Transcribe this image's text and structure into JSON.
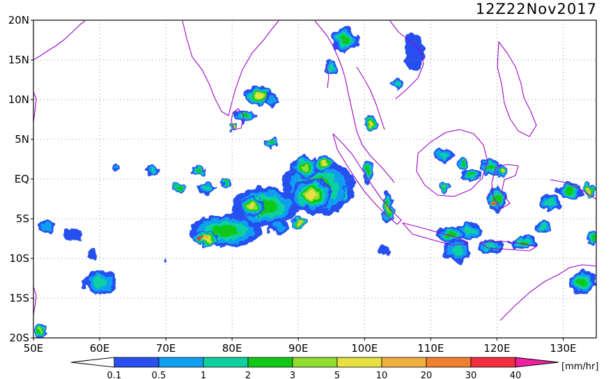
{
  "title": "12Z22Nov2017",
  "map": {
    "lon_range": [
      50,
      135
    ],
    "lat_range": [
      -20,
      20
    ],
    "lon_ticks": [
      {
        "value": 50,
        "label": "50E"
      },
      {
        "value": 60,
        "label": "60E"
      },
      {
        "value": 70,
        "label": "70E"
      },
      {
        "value": 80,
        "label": "80E"
      },
      {
        "value": 90,
        "label": "90E"
      },
      {
        "value": 100,
        "label": "100E"
      },
      {
        "value": 110,
        "label": "110E"
      },
      {
        "value": 120,
        "label": "120E"
      },
      {
        "value": 130,
        "label": "130E"
      }
    ],
    "lat_ticks": [
      {
        "value": 20,
        "label": "20N"
      },
      {
        "value": 15,
        "label": "15N"
      },
      {
        "value": 10,
        "label": "10N"
      },
      {
        "value": 5,
        "label": "5N"
      },
      {
        "value": 0,
        "label": "EQ"
      },
      {
        "value": -5,
        "label": "5S"
      },
      {
        "value": -10,
        "label": "10S"
      },
      {
        "value": -15,
        "label": "15S"
      },
      {
        "value": -20,
        "label": "20S"
      }
    ],
    "grid": "dotted",
    "coast_color": "#a000c8"
  },
  "colorbar": {
    "unit": "[mm/hr]",
    "levels": [
      "0.1",
      "0.5",
      "1",
      "2",
      "3",
      "5",
      "10",
      "20",
      "30",
      "40"
    ],
    "colors": [
      "#2850f0",
      "#10a0f0",
      "#10d0a0",
      "#10c818",
      "#90dc30",
      "#e8e040",
      "#f0b040",
      "#f08030",
      "#f03040"
    ],
    "under_color": "#ffffff",
    "over_color": "#f020a0"
  },
  "rain": [
    {
      "lon": 93,
      "lat": -1,
      "rx": 5.5,
      "ry": 3.5,
      "lvl": 3
    },
    {
      "lon": 92,
      "lat": -2,
      "rx": 3,
      "ry": 2,
      "lvl": 5
    },
    {
      "lon": 91,
      "lat": 1.5,
      "rx": 2,
      "ry": 1.5,
      "lvl": 4
    },
    {
      "lon": 85,
      "lat": -3.5,
      "rx": 5,
      "ry": 2.5,
      "lvl": 3
    },
    {
      "lon": 83,
      "lat": -3.5,
      "rx": 2,
      "ry": 1.2,
      "lvl": 5
    },
    {
      "lon": 79,
      "lat": -6.5,
      "rx": 5.5,
      "ry": 2,
      "lvl": 3
    },
    {
      "lon": 76,
      "lat": -7.5,
      "rx": 2,
      "ry": 1,
      "lvl": 6
    },
    {
      "lon": 75,
      "lat": -7.5,
      "rx": 0.4,
      "ry": 0.3,
      "lvl": 8
    },
    {
      "lon": 70,
      "lat": -10,
      "rx": 0.1,
      "ry": 0.1,
      "lvl": 0
    },
    {
      "lon": 60,
      "lat": -13,
      "rx": 2.5,
      "ry": 1.5,
      "lvl": 2
    },
    {
      "lon": 87,
      "lat": -6,
      "rx": 1.5,
      "ry": 1,
      "lvl": 1
    },
    {
      "lon": 90,
      "lat": -5.5,
      "rx": 1,
      "ry": 0.8,
      "lvl": 6
    },
    {
      "lon": 84,
      "lat": 10.5,
      "rx": 2,
      "ry": 1.3,
      "lvl": 5
    },
    {
      "lon": 86,
      "lat": 10,
      "rx": 1,
      "ry": 1,
      "lvl": 1
    },
    {
      "lon": 82,
      "lat": 8,
      "rx": 1.5,
      "ry": 0.8,
      "lvl": 3
    },
    {
      "lon": 80,
      "lat": 6.5,
      "rx": 0.5,
      "ry": 0.5,
      "lvl": 6
    },
    {
      "lon": 97,
      "lat": 17.5,
      "rx": 2,
      "ry": 1.5,
      "lvl": 3
    },
    {
      "lon": 95,
      "lat": 14,
      "rx": 1,
      "ry": 1,
      "lvl": 2
    },
    {
      "lon": 107.5,
      "lat": 16,
      "rx": 1.5,
      "ry": 2.5,
      "lvl": 0
    },
    {
      "lon": 105,
      "lat": 12,
      "rx": 0.8,
      "ry": 0.8,
      "lvl": 2
    },
    {
      "lon": 101,
      "lat": 7,
      "rx": 1,
      "ry": 1,
      "lvl": 5
    },
    {
      "lon": 112,
      "lat": 3,
      "rx": 1.5,
      "ry": 0.8,
      "lvl": 2
    },
    {
      "lon": 115,
      "lat": 2,
      "rx": 1,
      "ry": 0.8,
      "lvl": 3
    },
    {
      "lon": 119,
      "lat": 1.5,
      "rx": 1.5,
      "ry": 1,
      "lvl": 3
    },
    {
      "lon": 121,
      "lat": 1,
      "rx": 1,
      "ry": 0.8,
      "lvl": 6
    },
    {
      "lon": 116,
      "lat": 0.5,
      "rx": 1.5,
      "ry": 0.8,
      "lvl": 3
    },
    {
      "lon": 112,
      "lat": -1,
      "rx": 1,
      "ry": 0.6,
      "lvl": 4
    },
    {
      "lon": 120,
      "lat": -2.5,
      "rx": 1.5,
      "ry": 1.5,
      "lvl": 3
    },
    {
      "lon": 119.5,
      "lat": -3.2,
      "rx": 0.5,
      "ry": 0.5,
      "lvl": 8
    },
    {
      "lon": 116,
      "lat": -6.5,
      "rx": 2,
      "ry": 1,
      "lvl": 2
    },
    {
      "lon": 113,
      "lat": -7,
      "rx": 2,
      "ry": 1,
      "lvl": 3
    },
    {
      "lon": 114,
      "lat": -9,
      "rx": 2,
      "ry": 1.5,
      "lvl": 2
    },
    {
      "lon": 119,
      "lat": -8.5,
      "rx": 2,
      "ry": 0.8,
      "lvl": 2
    },
    {
      "lon": 124,
      "lat": -8,
      "rx": 2,
      "ry": 0.8,
      "lvl": 3
    },
    {
      "lon": 127,
      "lat": -6,
      "rx": 1.2,
      "ry": 0.8,
      "lvl": 2
    },
    {
      "lon": 128,
      "lat": -3,
      "rx": 1.5,
      "ry": 1,
      "lvl": 2
    },
    {
      "lon": 131,
      "lat": -1.5,
      "rx": 2,
      "ry": 1,
      "lvl": 3
    },
    {
      "lon": 134,
      "lat": -1.5,
      "rx": 0.8,
      "ry": 1,
      "lvl": 6
    },
    {
      "lon": 133,
      "lat": -13,
      "rx": 2,
      "ry": 1.5,
      "lvl": 3
    },
    {
      "lon": 134.5,
      "lat": -7.5,
      "rx": 0.8,
      "ry": 1,
      "lvl": 3
    },
    {
      "lon": 103.5,
      "lat": -3.5,
      "rx": 1,
      "ry": 2,
      "lvl": 4
    },
    {
      "lon": 100.5,
      "lat": 1,
      "rx": 0.8,
      "ry": 1.5,
      "lvl": 3
    },
    {
      "lon": 97,
      "lat": -2,
      "rx": 0.5,
      "ry": 1,
      "lvl": 2
    },
    {
      "lon": 56,
      "lat": -7,
      "rx": 1.5,
      "ry": 0.8,
      "lvl": 0
    },
    {
      "lon": 52,
      "lat": -6,
      "rx": 1.5,
      "ry": 0.8,
      "lvl": 1
    },
    {
      "lon": 51,
      "lat": -19,
      "rx": 1,
      "ry": 1,
      "lvl": 4
    },
    {
      "lon": 68,
      "lat": 1,
      "rx": 1,
      "ry": 0.7,
      "lvl": 2
    },
    {
      "lon": 72,
      "lat": -1,
      "rx": 1,
      "ry": 0.6,
      "lvl": 3
    },
    {
      "lon": 76,
      "lat": -1.2,
      "rx": 1.5,
      "ry": 0.7,
      "lvl": 2
    },
    {
      "lon": 79,
      "lat": -0.5,
      "rx": 1,
      "ry": 0.5,
      "lvl": 3
    },
    {
      "lon": 75,
      "lat": 1,
      "rx": 1,
      "ry": 0.5,
      "lvl": 3
    },
    {
      "lon": 62.5,
      "lat": 1.5,
      "rx": 0.5,
      "ry": 0.5,
      "lvl": 1
    },
    {
      "lon": 86,
      "lat": 4.5,
      "rx": 1,
      "ry": 0.5,
      "lvl": 3
    },
    {
      "lon": 94,
      "lat": 2,
      "rx": 1.5,
      "ry": 1,
      "lvl": 5
    },
    {
      "lon": 103,
      "lat": -9,
      "rx": 1,
      "ry": 0.6,
      "lvl": 0
    },
    {
      "lon": 59,
      "lat": -9.5,
      "rx": 0.5,
      "ry": 0.8,
      "lvl": 0
    }
  ]
}
